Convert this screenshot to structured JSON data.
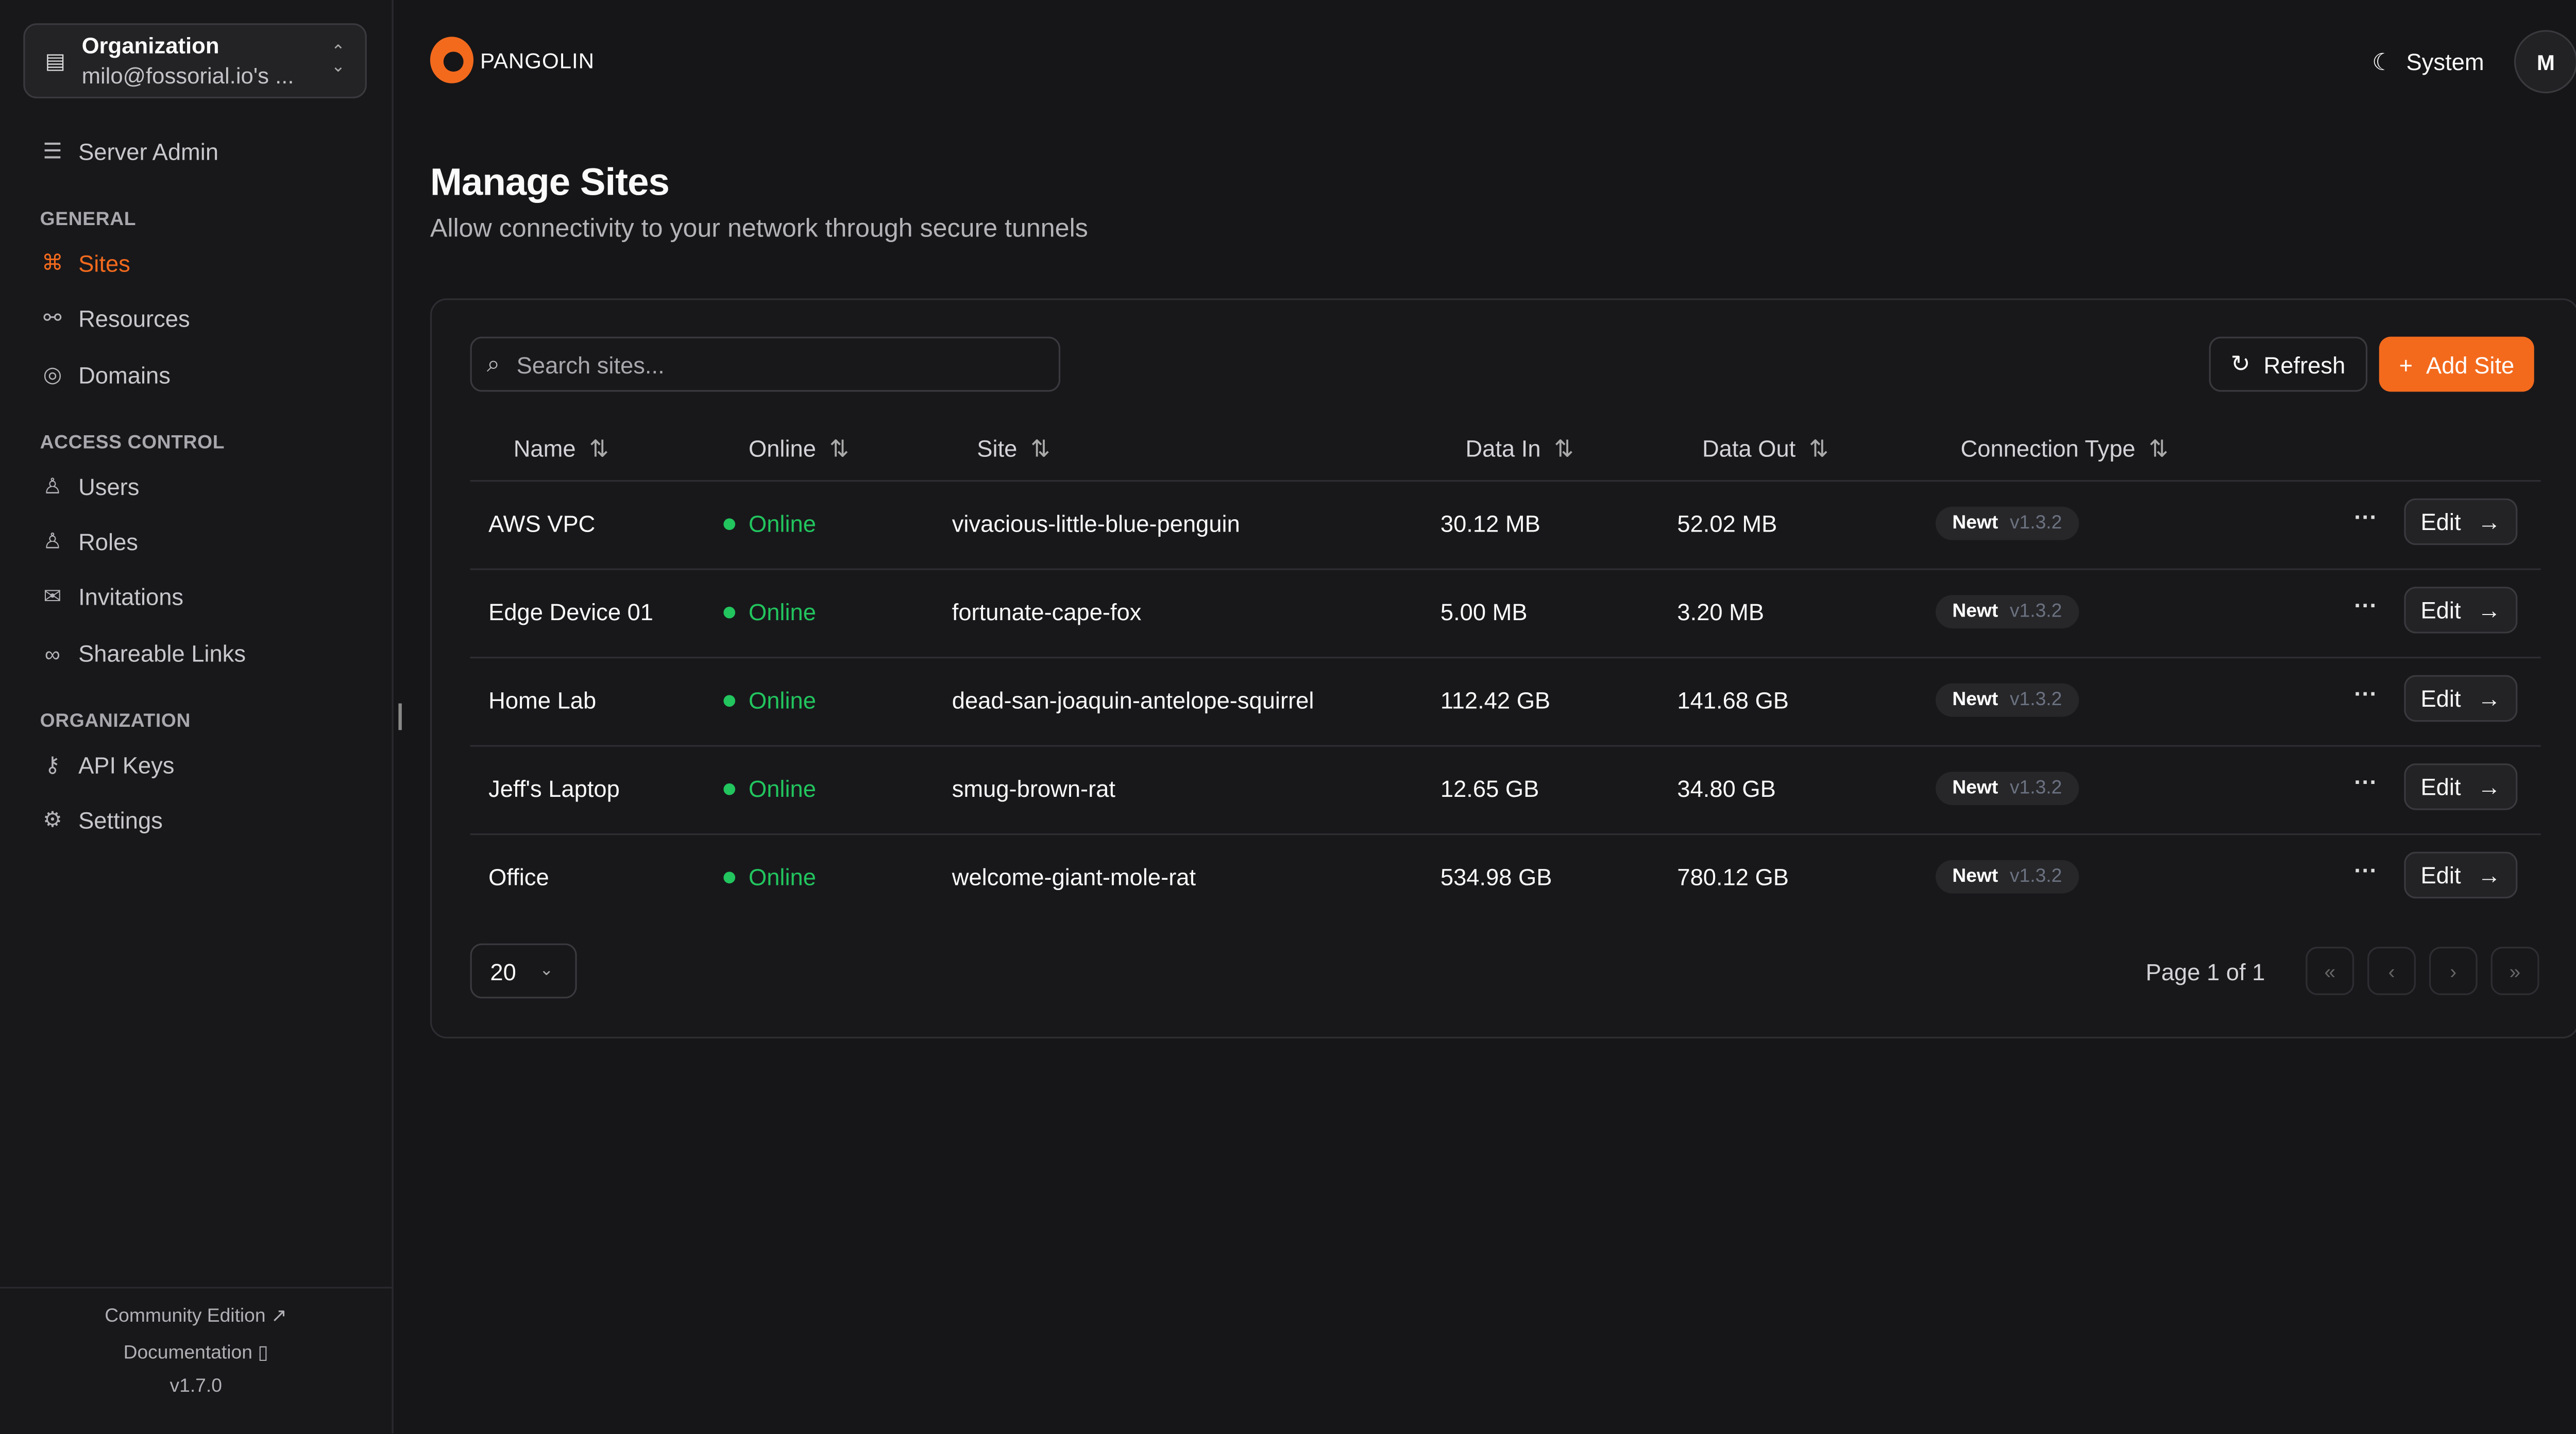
{
  "org": {
    "label": "Organization",
    "value": "milo@fossorial.io's ..."
  },
  "sidebar": {
    "server_admin": "Server Admin",
    "sections": [
      "GENERAL",
      "ACCESS CONTROL",
      "ORGANIZATION"
    ],
    "items": [
      {
        "label": "Sites",
        "icon": "sites-icon",
        "active": true
      },
      {
        "label": "Resources",
        "icon": "resources-icon"
      },
      {
        "label": "Domains",
        "icon": "globe-icon"
      },
      {
        "label": "Users",
        "icon": "user-icon"
      },
      {
        "label": "Roles",
        "icon": "users-icon"
      },
      {
        "label": "Invitations",
        "icon": "mail-icon"
      },
      {
        "label": "Shareable Links",
        "icon": "link-icon"
      },
      {
        "label": "API Keys",
        "icon": "key-icon"
      },
      {
        "label": "Settings",
        "icon": "gear-icon"
      }
    ],
    "footer": {
      "community": "Community Edition",
      "docs": "Documentation",
      "version": "v1.7.0"
    }
  },
  "header": {
    "brand": "PANGOLIN",
    "theme": "System",
    "avatar": "M"
  },
  "page": {
    "title": "Manage Sites",
    "subtitle": "Allow connectivity to your network through secure tunnels"
  },
  "toolbar": {
    "search_placeholder": "Search sites...",
    "refresh": "Refresh",
    "add": "Add Site"
  },
  "table": {
    "columns": [
      "Name",
      "Online",
      "Site",
      "Data In",
      "Data Out",
      "Connection Type"
    ],
    "rows": [
      {
        "name": "AWS VPC",
        "online": "Online",
        "site": "vivacious-little-blue-penguin",
        "in": "30.12 MB",
        "out": "52.02 MB",
        "type": "Newt",
        "ver": "v1.3.2",
        "edit": "Edit"
      },
      {
        "name": "Edge Device 01",
        "online": "Online",
        "site": "fortunate-cape-fox",
        "in": "5.00 MB",
        "out": "3.20 MB",
        "type": "Newt",
        "ver": "v1.3.2",
        "edit": "Edit"
      },
      {
        "name": "Home Lab",
        "online": "Online",
        "site": "dead-san-joaquin-antelope-squirrel",
        "in": "112.42 GB",
        "out": "141.68 GB",
        "type": "Newt",
        "ver": "v1.3.2",
        "edit": "Edit"
      },
      {
        "name": "Jeff's Laptop",
        "online": "Online",
        "site": "smug-brown-rat",
        "in": "12.65 GB",
        "out": "34.80 GB",
        "type": "Newt",
        "ver": "v1.3.2",
        "edit": "Edit"
      },
      {
        "name": "Office",
        "online": "Online",
        "site": "welcome-giant-mole-rat",
        "in": "534.98 GB",
        "out": "780.12 GB",
        "type": "Newt",
        "ver": "v1.3.2",
        "edit": "Edit"
      }
    ]
  },
  "pagination": {
    "page_size": "20",
    "info": "Page 1 of 1"
  },
  "colors": {
    "accent": "#f36a1d",
    "online": "#22c55e"
  }
}
